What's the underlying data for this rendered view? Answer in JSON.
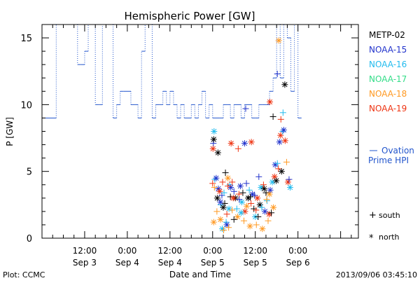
{
  "chart_data": {
    "type": "scatter",
    "title": "Hemispheric Power [GW]",
    "ylabel": "P [GW]",
    "xlabel": "Date and Time",
    "xlim_hours": [
      0,
      89
    ],
    "ylim": [
      0,
      16
    ],
    "grid": false,
    "legend_position": "right",
    "y_ticks": [
      0,
      5,
      10,
      15
    ],
    "x_ticks": [
      {
        "t": 12,
        "time": "12:00",
        "date": "Sep 3"
      },
      {
        "t": 24,
        "time": "0:00",
        "date": "Sep 4"
      },
      {
        "t": 36,
        "time": "12:00",
        "date": "Sep 4"
      },
      {
        "t": 48,
        "time": "0:00",
        "date": "Sep 5"
      },
      {
        "t": 60,
        "time": "12:00",
        "date": "Sep 5"
      },
      {
        "t": 72,
        "time": "0:00",
        "date": "Sep 6"
      }
    ],
    "series": [
      {
        "name": "METP-02",
        "color": "#000000"
      },
      {
        "name": "NOAA-15",
        "color": "#2233cc"
      },
      {
        "name": "NOAA-16",
        "color": "#22bbee"
      },
      {
        "name": "NOAA-17",
        "color": "#33dd88"
      },
      {
        "name": "NOAA-18",
        "color": "#ff9922"
      },
      {
        "name": "NOAA-19",
        "color": "#ee3311"
      }
    ],
    "ovation": {
      "name_line1": "Ovation",
      "name_line2": "Prime HPI",
      "color": "#2255cc",
      "segments": [
        [
          0,
          4,
          9
        ],
        [
          4,
          8,
          16
        ],
        [
          8,
          10,
          16
        ],
        [
          10,
          11,
          13
        ],
        [
          11,
          12,
          13
        ],
        [
          12,
          13,
          14
        ],
        [
          13,
          14,
          16
        ],
        [
          14,
          15,
          16
        ],
        [
          15,
          16,
          10
        ],
        [
          16,
          17,
          10
        ],
        [
          17,
          19,
          16
        ],
        [
          19,
          20,
          16
        ],
        [
          20,
          21,
          9
        ],
        [
          21,
          22,
          10
        ],
        [
          22,
          23,
          11
        ],
        [
          23,
          25,
          11
        ],
        [
          25,
          26,
          10
        ],
        [
          26,
          27,
          10
        ],
        [
          27,
          28,
          9
        ],
        [
          28,
          29,
          14
        ],
        [
          29,
          30,
          16
        ],
        [
          30,
          31,
          16
        ],
        [
          31,
          32,
          9
        ],
        [
          32,
          33,
          10
        ],
        [
          33,
          34,
          10
        ],
        [
          34,
          35,
          11
        ],
        [
          35,
          36,
          10
        ],
        [
          36,
          37,
          11
        ],
        [
          37,
          38,
          10
        ],
        [
          38,
          39,
          9
        ],
        [
          39,
          40,
          10
        ],
        [
          40,
          42,
          9
        ],
        [
          42,
          43,
          10
        ],
        [
          43,
          44,
          9
        ],
        [
          44,
          45,
          10
        ],
        [
          45,
          46,
          11
        ],
        [
          46,
          47,
          9
        ],
        [
          47,
          48,
          10
        ],
        [
          48,
          50,
          9
        ],
        [
          50,
          51,
          9
        ],
        [
          51,
          52,
          10
        ],
        [
          52,
          53,
          10
        ],
        [
          53,
          54,
          9
        ],
        [
          54,
          56,
          10
        ],
        [
          56,
          57,
          9
        ],
        [
          57,
          59,
          10
        ],
        [
          59,
          60,
          9
        ],
        [
          60,
          61,
          9
        ],
        [
          61,
          62,
          10
        ],
        [
          62,
          64,
          10
        ],
        [
          64,
          65,
          11
        ],
        [
          65,
          66,
          12
        ],
        [
          66,
          67,
          16
        ],
        [
          67,
          68,
          12
        ],
        [
          68,
          69,
          16
        ],
        [
          69,
          70,
          15
        ],
        [
          70,
          71,
          11
        ],
        [
          71,
          72,
          16
        ],
        [
          72,
          73,
          9
        ]
      ]
    },
    "points": [
      {
        "s": 1,
        "t": 48.2,
        "v": 7.1,
        "m": "+"
      },
      {
        "s": 0,
        "t": 48.3,
        "v": 7.4,
        "m": "*"
      },
      {
        "s": 5,
        "t": 48.1,
        "v": 6.7,
        "m": "*"
      },
      {
        "s": 2,
        "t": 48.4,
        "v": 8.0,
        "m": "*"
      },
      {
        "s": 0,
        "t": 49.5,
        "v": 6.4,
        "m": "*"
      },
      {
        "s": 5,
        "t": 53.2,
        "v": 7.1,
        "m": "*"
      },
      {
        "s": 5,
        "t": 55.2,
        "v": 6.7,
        "m": "+"
      },
      {
        "s": 1,
        "t": 57.0,
        "v": 7.1,
        "m": "*"
      },
      {
        "s": 5,
        "t": 58.9,
        "v": 7.2,
        "m": "*"
      },
      {
        "s": 1,
        "t": 57.3,
        "v": 9.7,
        "m": "+"
      },
      {
        "s": 0,
        "t": 65.0,
        "v": 9.1,
        "m": "+"
      },
      {
        "s": 5,
        "t": 64.1,
        "v": 10.2,
        "m": "*"
      },
      {
        "s": 1,
        "t": 66.2,
        "v": 12.3,
        "m": "+"
      },
      {
        "s": 4,
        "t": 66.6,
        "v": 14.8,
        "m": "*"
      },
      {
        "s": 0,
        "t": 68.3,
        "v": 11.5,
        "m": "*"
      },
      {
        "s": 2,
        "t": 67.8,
        "v": 9.4,
        "m": "+"
      },
      {
        "s": 5,
        "t": 67.2,
        "v": 8.9,
        "m": "+"
      },
      {
        "s": 5,
        "t": 48.0,
        "v": 4.1,
        "m": "+"
      },
      {
        "s": 2,
        "t": 48.6,
        "v": 4.4,
        "m": "+"
      },
      {
        "s": 1,
        "t": 49.0,
        "v": 4.5,
        "m": "*"
      },
      {
        "s": 0,
        "t": 49.3,
        "v": 3.0,
        "m": "*"
      },
      {
        "s": 1,
        "t": 49.6,
        "v": 3.7,
        "m": "*"
      },
      {
        "s": 4,
        "t": 48.5,
        "v": 3.8,
        "m": "+"
      },
      {
        "s": 5,
        "t": 50.0,
        "v": 3.5,
        "m": "*"
      },
      {
        "s": 2,
        "t": 50.3,
        "v": 2.5,
        "m": "+"
      },
      {
        "s": 1,
        "t": 50.6,
        "v": 3.2,
        "m": "+"
      },
      {
        "s": 0,
        "t": 51.0,
        "v": 2.3,
        "m": "*"
      },
      {
        "s": 5,
        "t": 50.8,
        "v": 4.2,
        "m": "+"
      },
      {
        "s": 0,
        "t": 51.6,
        "v": 4.9,
        "m": "+"
      },
      {
        "s": 4,
        "t": 52.3,
        "v": 4.5,
        "m": "*"
      },
      {
        "s": 2,
        "t": 52.8,
        "v": 4.0,
        "m": "+"
      },
      {
        "s": 1,
        "t": 53.1,
        "v": 3.8,
        "m": "*"
      },
      {
        "s": 5,
        "t": 53.5,
        "v": 4.2,
        "m": "+"
      },
      {
        "s": 0,
        "t": 53.0,
        "v": 3.1,
        "m": "+"
      },
      {
        "s": 4,
        "t": 48.3,
        "v": 1.2,
        "m": "*"
      },
      {
        "s": 4,
        "t": 49.2,
        "v": 2.0,
        "m": "+"
      },
      {
        "s": 4,
        "t": 50.2,
        "v": 1.4,
        "m": "*"
      },
      {
        "s": 2,
        "t": 50.7,
        "v": 0.7,
        "m": "*"
      },
      {
        "s": 4,
        "t": 51.1,
        "v": 0.6,
        "m": "+"
      },
      {
        "s": 2,
        "t": 51.8,
        "v": 1.2,
        "m": "+"
      },
      {
        "s": 1,
        "t": 52.0,
        "v": 1.0,
        "m": "*"
      },
      {
        "s": 4,
        "t": 52.5,
        "v": 0.8,
        "m": "+"
      },
      {
        "s": 0,
        "t": 51.4,
        "v": 2.6,
        "m": "+"
      },
      {
        "s": 2,
        "t": 52.6,
        "v": 2.2,
        "m": "*"
      },
      {
        "s": 5,
        "t": 52.0,
        "v": 1.8,
        "m": "+"
      },
      {
        "s": 1,
        "t": 54.0,
        "v": 3.5,
        "m": "+"
      },
      {
        "s": 0,
        "t": 54.4,
        "v": 3.0,
        "m": "*"
      },
      {
        "s": 2,
        "t": 54.8,
        "v": 2.2,
        "m": "+"
      },
      {
        "s": 4,
        "t": 55.0,
        "v": 1.6,
        "m": "*"
      },
      {
        "s": 5,
        "t": 55.4,
        "v": 3.3,
        "m": "+"
      },
      {
        "s": 1,
        "t": 55.8,
        "v": 3.9,
        "m": "*"
      },
      {
        "s": 2,
        "t": 56.2,
        "v": 2.7,
        "m": "*"
      },
      {
        "s": 0,
        "t": 56.5,
        "v": 3.4,
        "m": "+"
      },
      {
        "s": 4,
        "t": 56.8,
        "v": 1.3,
        "m": "+"
      },
      {
        "s": 5,
        "t": 57.1,
        "v": 2.0,
        "m": "*"
      },
      {
        "s": 1,
        "t": 57.5,
        "v": 4.1,
        "m": "+"
      },
      {
        "s": 0,
        "t": 58.0,
        "v": 3.0,
        "m": "*"
      },
      {
        "s": 2,
        "t": 58.3,
        "v": 3.6,
        "m": "+"
      },
      {
        "s": 4,
        "t": 58.5,
        "v": 0.9,
        "m": "*"
      },
      {
        "s": 5,
        "t": 58.8,
        "v": 2.6,
        "m": "+"
      },
      {
        "s": 1,
        "t": 59.2,
        "v": 3.3,
        "m": "*"
      },
      {
        "s": 0,
        "t": 59.6,
        "v": 2.2,
        "m": "+"
      },
      {
        "s": 2,
        "t": 60.0,
        "v": 1.6,
        "m": "*"
      },
      {
        "s": 4,
        "t": 60.3,
        "v": 1.0,
        "m": "+"
      },
      {
        "s": 5,
        "t": 60.6,
        "v": 3.0,
        "m": "*"
      },
      {
        "s": 1,
        "t": 61.0,
        "v": 4.6,
        "m": "+"
      },
      {
        "s": 0,
        "t": 61.3,
        "v": 2.5,
        "m": "*"
      },
      {
        "s": 2,
        "t": 61.6,
        "v": 3.8,
        "m": "*"
      },
      {
        "s": 4,
        "t": 62.0,
        "v": 0.7,
        "m": "*"
      },
      {
        "s": 5,
        "t": 62.3,
        "v": 4.0,
        "m": "+"
      },
      {
        "s": 1,
        "t": 62.7,
        "v": 2.0,
        "m": "*"
      },
      {
        "s": 0,
        "t": 63.0,
        "v": 3.4,
        "m": "+"
      },
      {
        "s": 2,
        "t": 63.3,
        "v": 2.8,
        "m": "+"
      },
      {
        "s": 4,
        "t": 63.6,
        "v": 1.3,
        "m": "+"
      },
      {
        "s": 5,
        "t": 63.9,
        "v": 1.8,
        "m": "*"
      },
      {
        "s": 1,
        "t": 64.2,
        "v": 3.6,
        "m": "*"
      },
      {
        "s": 0,
        "t": 64.5,
        "v": 1.9,
        "m": "+"
      },
      {
        "s": 2,
        "t": 64.8,
        "v": 4.2,
        "m": "*"
      },
      {
        "s": 4,
        "t": 65.1,
        "v": 2.3,
        "m": "*"
      },
      {
        "s": 5,
        "t": 65.4,
        "v": 4.6,
        "m": "*"
      },
      {
        "s": 1,
        "t": 65.6,
        "v": 5.5,
        "m": "*"
      },
      {
        "s": 0,
        "t": 65.9,
        "v": 4.3,
        "m": "*"
      },
      {
        "s": 2,
        "t": 66.2,
        "v": 5.6,
        "m": "+"
      },
      {
        "s": 5,
        "t": 66.5,
        "v": 5.2,
        "m": "+"
      },
      {
        "s": 1,
        "t": 66.8,
        "v": 7.2,
        "m": "*"
      },
      {
        "s": 5,
        "t": 67.1,
        "v": 7.7,
        "m": "*"
      },
      {
        "s": 0,
        "t": 67.4,
        "v": 5.0,
        "m": "*"
      },
      {
        "s": 2,
        "t": 67.7,
        "v": 8.0,
        "m": "+"
      },
      {
        "s": 1,
        "t": 68.0,
        "v": 8.1,
        "m": "*"
      },
      {
        "s": 5,
        "t": 68.4,
        "v": 7.3,
        "m": "*"
      },
      {
        "s": 4,
        "t": 68.8,
        "v": 5.7,
        "m": "+"
      },
      {
        "s": 5,
        "t": 69.2,
        "v": 4.2,
        "m": "*"
      },
      {
        "s": 1,
        "t": 69.5,
        "v": 4.4,
        "m": "+"
      },
      {
        "s": 2,
        "t": 69.8,
        "v": 3.8,
        "m": "*"
      },
      {
        "s": 4,
        "t": 63.2,
        "v": 2.9,
        "m": "+"
      },
      {
        "s": 2,
        "t": 61.8,
        "v": 2.3,
        "m": "+"
      },
      {
        "s": 0,
        "t": 62.5,
        "v": 3.7,
        "m": "*"
      },
      {
        "s": 5,
        "t": 60.2,
        "v": 2.1,
        "m": "+"
      },
      {
        "s": 1,
        "t": 59.8,
        "v": 3.2,
        "m": "+"
      },
      {
        "s": 0,
        "t": 58.6,
        "v": 3.1,
        "m": "+"
      },
      {
        "s": 4,
        "t": 57.6,
        "v": 2.4,
        "m": "*"
      },
      {
        "s": 2,
        "t": 56.0,
        "v": 1.9,
        "m": "*"
      },
      {
        "s": 1,
        "t": 55.5,
        "v": 2.9,
        "m": "+"
      },
      {
        "s": 0,
        "t": 54.0,
        "v": 1.4,
        "m": "+"
      },
      {
        "s": 5,
        "t": 53.8,
        "v": 3.0,
        "m": "*"
      },
      {
        "s": 4,
        "t": 53.5,
        "v": 2.1,
        "m": "+"
      },
      {
        "s": 2,
        "t": 51.2,
        "v": 3.4,
        "m": "+"
      },
      {
        "s": 5,
        "t": 52.3,
        "v": 3.9,
        "m": "+"
      },
      {
        "s": 1,
        "t": 50.2,
        "v": 2.7,
        "m": "*"
      },
      {
        "s": 4,
        "t": 64.0,
        "v": 3.3,
        "m": "*"
      },
      {
        "s": 0,
        "t": 60.8,
        "v": 1.6,
        "m": "+"
      }
    ]
  },
  "legend": {
    "south_symbol": "+",
    "south_label": "south",
    "north_symbol": "*",
    "north_label": "north"
  },
  "footer": {
    "left": "Plot: CCMC",
    "right": "2013/09/06 03:45:10"
  }
}
